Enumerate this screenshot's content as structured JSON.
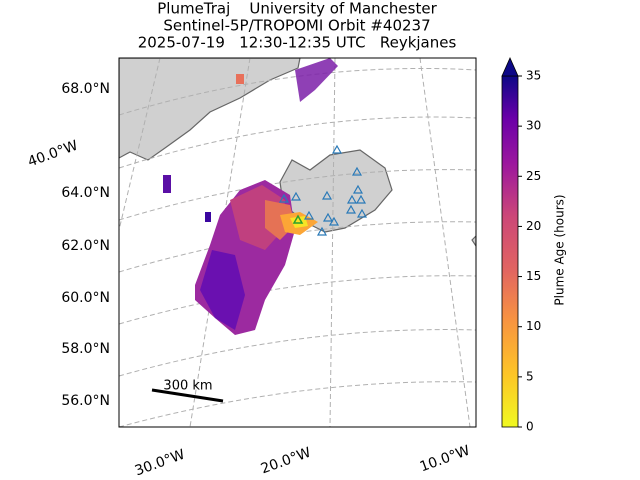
{
  "title": {
    "line1": "PlumeTraj    University of Manchester",
    "line2": "Sentinel-5P/TROPOMI Orbit #40237",
    "line3": "2025-07-19   12:30-12:35 UTC   Reykjanes"
  },
  "map": {
    "lat_labels": [
      "68.0°N",
      "64.0°N",
      "62.0°N",
      "60.0°N",
      "58.0°N",
      "56.0°N"
    ],
    "lon_labels": [
      "40.0°W",
      "30.0°W",
      "20.0°W",
      "10.0°W"
    ],
    "scale_label": "300 km"
  },
  "colorbar": {
    "label": "Plume Age (hours)",
    "ylim": [
      0,
      35
    ],
    "yticks": [
      0,
      5,
      10,
      15,
      20,
      25,
      30,
      35
    ]
  }
}
